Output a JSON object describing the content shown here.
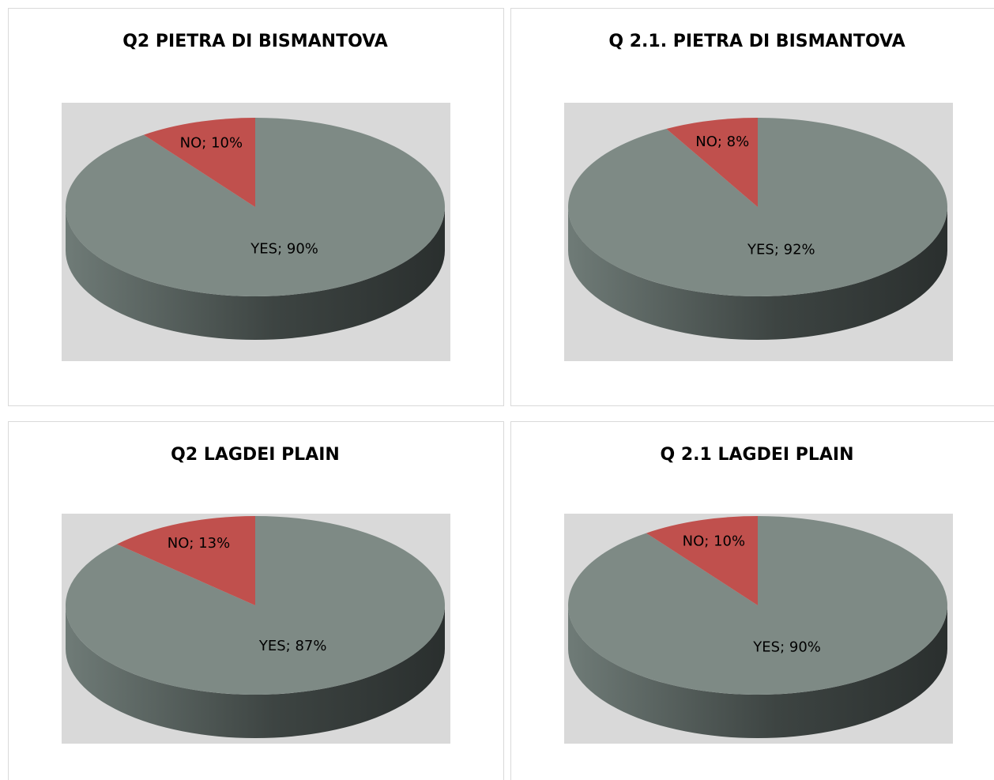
{
  "chart_data": [
    {
      "type": "pie",
      "title": "Q2 PIETRA DI BISMANTOVA",
      "categories": [
        "YES",
        "NO"
      ],
      "values": [
        90,
        10
      ],
      "value_labels": [
        "YES; 90%",
        "NO; 10%"
      ],
      "colors": [
        "#7e8a85",
        "#c0504d"
      ]
    },
    {
      "type": "pie",
      "title": "Q 2.1. PIETRA DI BISMANTOVA",
      "categories": [
        "YES",
        "NO"
      ],
      "values": [
        92,
        8
      ],
      "value_labels": [
        "YES; 92%",
        "NO; 8%"
      ],
      "colors": [
        "#7e8a85",
        "#c0504d"
      ]
    },
    {
      "type": "pie",
      "title": "Q2 LAGDEI PLAIN",
      "categories": [
        "YES",
        "NO"
      ],
      "values": [
        87,
        13
      ],
      "value_labels": [
        "YES; 87%",
        "NO; 13%"
      ],
      "colors": [
        "#7e8a85",
        "#c0504d"
      ]
    },
    {
      "type": "pie",
      "title": "Q 2.1 LAGDEI PLAIN",
      "categories": [
        "YES",
        "NO"
      ],
      "values": [
        90,
        10
      ],
      "value_labels": [
        "YES; 90%",
        "NO; 10%"
      ],
      "colors": [
        "#7e8a85",
        "#c0504d"
      ]
    }
  ]
}
